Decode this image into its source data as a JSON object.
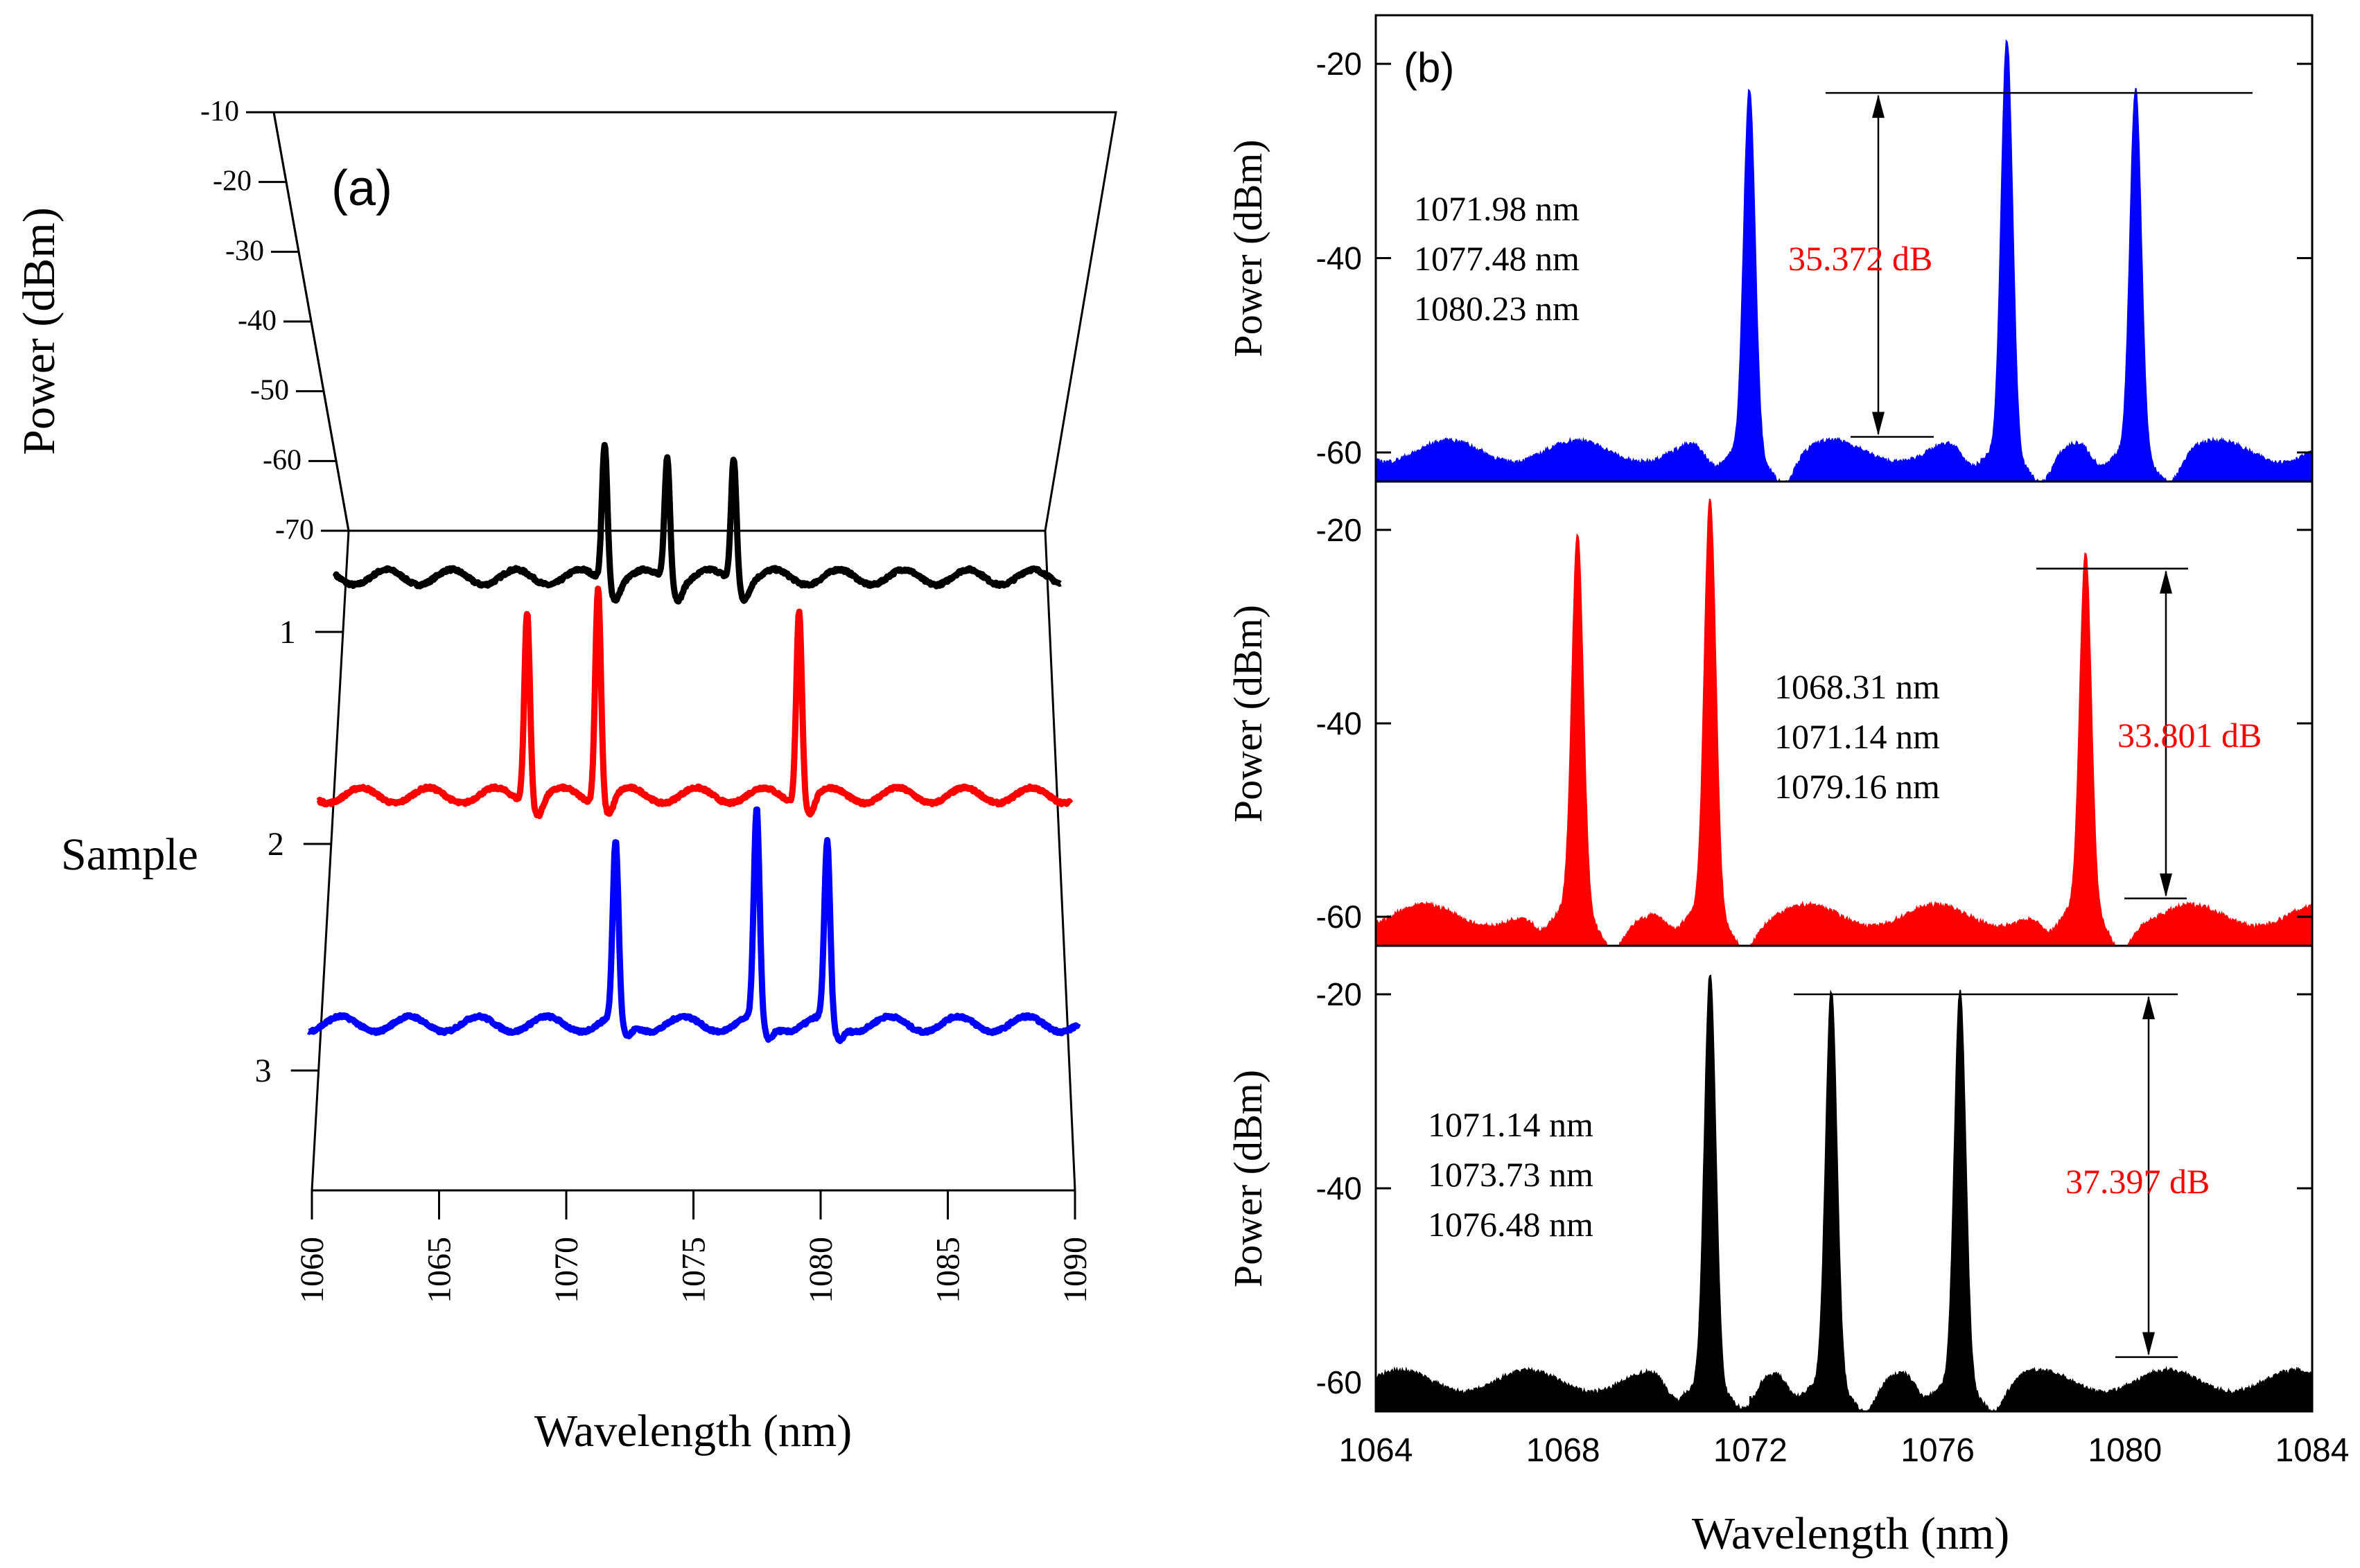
{
  "chart_data": [
    {
      "panel": "(a)",
      "type": "line",
      "title": "",
      "xlabel": "Wavelength (nm)",
      "ylabel": "Power (dBm)",
      "zlabel": "Sample",
      "xlim": [
        1060,
        1090
      ],
      "ylim": [
        -70,
        -10
      ],
      "x_ticks": [
        "1060",
        "1065",
        "1070",
        "1075",
        "1080",
        "1085",
        "1090"
      ],
      "y_ticks": [
        "-10",
        "-20",
        "-30",
        "-40",
        "-50",
        "-60",
        "-70"
      ],
      "sample_ticks": [
        "1",
        "2",
        "3"
      ],
      "series": [
        {
          "name": "1",
          "color": "#000000",
          "peaks_nm": [
            1071.14,
            1073.73,
            1076.48
          ],
          "peak_dbm": [
            -33,
            -36,
            -36
          ],
          "baseline_dbm": -62
        },
        {
          "name": "2",
          "color": "#ff0000",
          "peaks_nm": [
            1068.31,
            1071.14,
            1079.16
          ],
          "peak_dbm": [
            -22,
            -17,
            -22
          ],
          "baseline_dbm": -62
        },
        {
          "name": "3",
          "color": "#0000ff",
          "peaks_nm": [
            1071.98,
            1077.48,
            1080.23
          ],
          "peak_dbm": [
            -25,
            -18,
            -25
          ],
          "baseline_dbm": -62
        }
      ]
    },
    {
      "panel": "(b)",
      "type": "area",
      "xlabel": "Wavelength (nm)",
      "xlim": [
        1064,
        1084
      ],
      "x_ticks": [
        "1064",
        "1068",
        "1072",
        "1076",
        "1080",
        "1084"
      ],
      "subplots": [
        {
          "color": "#0000ff",
          "ylabel": "Power (dBm)",
          "ylim": [
            -63,
            -15
          ],
          "y_ticks": [
            "-20",
            "-40",
            "-60"
          ],
          "peaks_nm": [
            1071.98,
            1077.48,
            1080.23
          ],
          "peak_dbm": [
            -23,
            -18,
            -23
          ],
          "labels": [
            "1071.98 nm",
            "1077.48 nm",
            "1080.23 nm"
          ],
          "annotation": "35.372 dB",
          "annotation_top_dbm": -23,
          "annotation_bottom_dbm": -58.4
        },
        {
          "color": "#ff0000",
          "ylabel": "Power (dBm)",
          "ylim": [
            -63,
            -15
          ],
          "y_ticks": [
            "-20",
            "-40",
            "-60"
          ],
          "peaks_nm": [
            1068.31,
            1071.14,
            1079.16
          ],
          "peak_dbm": [
            -22,
            -18,
            -24
          ],
          "labels": [
            "1068.31 nm",
            "1071.14 nm",
            "1079.16 nm"
          ],
          "annotation": "33.801 dB",
          "annotation_top_dbm": -24,
          "annotation_bottom_dbm": -58.1
        },
        {
          "color": "#000000",
          "ylabel": "Power (dBm)",
          "ylim": [
            -63,
            -15
          ],
          "y_ticks": [
            "-20",
            "-40",
            "-60"
          ],
          "peaks_nm": [
            1071.14,
            1073.73,
            1076.48
          ],
          "peak_dbm": [
            -18,
            -20,
            -20
          ],
          "labels": [
            "1071.14 nm",
            "1073.73 nm",
            "1076.48 nm"
          ],
          "annotation": "37.397 dB",
          "annotation_top_dbm": -20,
          "annotation_bottom_dbm": -57.4
        }
      ]
    }
  ]
}
